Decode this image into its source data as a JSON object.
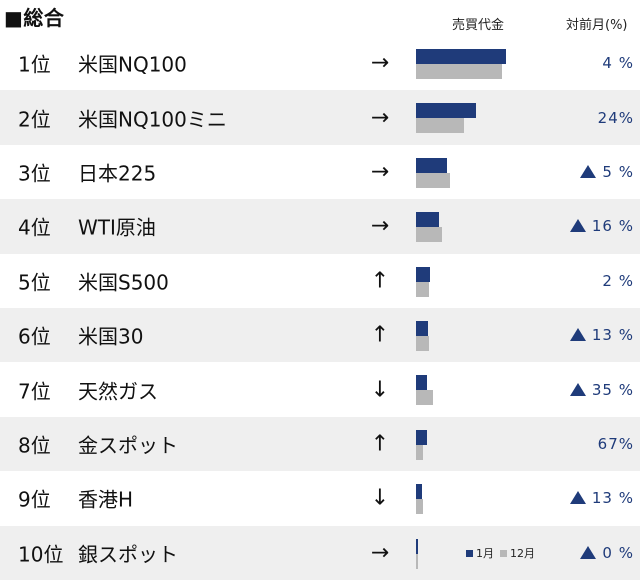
{
  "header": {
    "title": "■総合",
    "col_volume": "売買代金",
    "col_change": "対前月(%)"
  },
  "legend": {
    "current": "1月",
    "previous": "12月"
  },
  "colors": {
    "current_bar": "#1f3b7a",
    "previous_bar": "#b8b8b8",
    "change_text": "#1f3b7a"
  },
  "rows": [
    {
      "rank": "1位",
      "name": "米国NQ100",
      "arrow": "→",
      "current": 0.75,
      "previous": 0.72,
      "up": false,
      "change": "4 %"
    },
    {
      "rank": "2位",
      "name": "米国NQ100ミニ",
      "arrow": "→",
      "current": 0.5,
      "previous": 0.4,
      "up": false,
      "change": "24%"
    },
    {
      "rank": "3位",
      "name": "日本225",
      "arrow": "→",
      "current": 0.26,
      "previous": 0.28,
      "up": true,
      "change": "5 %"
    },
    {
      "rank": "4位",
      "name": "WTI原油",
      "arrow": "→",
      "current": 0.19,
      "previous": 0.22,
      "up": true,
      "change": "16 %"
    },
    {
      "rank": "5位",
      "name": "米国S500",
      "arrow": "↑",
      "current": 0.12,
      "previous": 0.11,
      "up": false,
      "change": "2 %"
    },
    {
      "rank": "6位",
      "name": "米国30",
      "arrow": "↑",
      "current": 0.1,
      "previous": 0.11,
      "up": true,
      "change": "13 %"
    },
    {
      "rank": "7位",
      "name": "天然ガス",
      "arrow": "↓",
      "current": 0.09,
      "previous": 0.14,
      "up": true,
      "change": "35 %"
    },
    {
      "rank": "8位",
      "name": "金スポット",
      "arrow": "↑",
      "current": 0.09,
      "previous": 0.06,
      "up": false,
      "change": "67%"
    },
    {
      "rank": "9位",
      "name": "香港H",
      "arrow": "↓",
      "current": 0.05,
      "previous": 0.06,
      "up": true,
      "change": "13 %"
    },
    {
      "rank": "10位",
      "name": "銀スポット",
      "arrow": "→",
      "current": 0.02,
      "previous": 0.02,
      "up": true,
      "change": "0 %"
    }
  ]
}
